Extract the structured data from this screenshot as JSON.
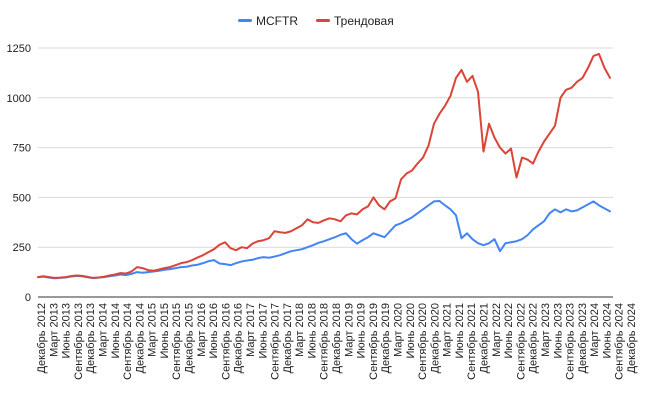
{
  "chart_data": {
    "type": "line",
    "title": "",
    "xlabel": "",
    "ylabel": "",
    "ylim": [
      0,
      1250
    ],
    "yticks": [
      0,
      250,
      500,
      750,
      1000,
      1250
    ],
    "ytick_labels": [
      "0",
      "250",
      "500",
      "750",
      "1000",
      "1250"
    ],
    "grid": true,
    "legend": "top-center",
    "x_tick_labels": [
      "Декабрь 2012",
      "Март 2013",
      "Июнь 2013",
      "Сентябрь 2013",
      "Декабрь 2013",
      "Март 2014",
      "Июнь 2014",
      "Сентябрь 2014",
      "Декабрь 2014",
      "Март 2015",
      "Июнь 2015",
      "Сентябрь 2015",
      "Декабрь 2015",
      "Март 2016",
      "Июнь 2016",
      "Сентябрь 2016",
      "Декабрь 2016",
      "Март 2017",
      "Июнь 2017",
      "Сентябрь 2017",
      "Декабрь 2017",
      "Март 2018",
      "Июнь 2018",
      "Сентябрь 2018",
      "Декабрь 2018",
      "Март 2019",
      "Июнь 2019",
      "Сентябрь 2019",
      "Декабрь 2019",
      "Март 2020",
      "Июнь 2020",
      "Сентябрь 2020",
      "Декабрь 2020",
      "Март 2021",
      "Июнь 2021",
      "Сентябрь 2021",
      "Декабрь 2021",
      "Март 2022",
      "Июнь 2022",
      "Сентябрь 2022",
      "Декабрь 2022",
      "Март 2023",
      "Июнь 2023",
      "Сентябрь 2023",
      "Декабрь 2023",
      "Март 2024",
      "Июнь 2024",
      "Сентябрь 2024",
      "Декабрь 2024"
    ],
    "series": [
      {
        "name": "MCFTR",
        "color": "#4285F4",
        "points": [
          [
            0,
            100
          ],
          [
            1,
            102
          ],
          [
            2,
            97
          ],
          [
            3,
            94
          ],
          [
            4,
            96
          ],
          [
            5,
            98
          ],
          [
            6,
            103
          ],
          [
            7,
            106
          ],
          [
            8,
            104
          ],
          [
            9,
            99
          ],
          [
            10,
            95
          ],
          [
            11,
            97
          ],
          [
            12,
            100
          ],
          [
            13,
            104
          ],
          [
            14,
            108
          ],
          [
            15,
            113
          ],
          [
            16,
            110
          ],
          [
            17,
            116
          ],
          [
            18,
            125
          ],
          [
            19,
            122
          ],
          [
            20,
            125
          ],
          [
            21,
            128
          ],
          [
            22,
            132
          ],
          [
            23,
            137
          ],
          [
            24,
            140
          ],
          [
            25,
            145
          ],
          [
            26,
            150
          ],
          [
            27,
            152
          ],
          [
            28,
            158
          ],
          [
            29,
            162
          ],
          [
            30,
            170
          ],
          [
            31,
            180
          ],
          [
            32,
            185
          ],
          [
            33,
            168
          ],
          [
            34,
            165
          ],
          [
            35,
            160
          ],
          [
            36,
            170
          ],
          [
            37,
            178
          ],
          [
            38,
            183
          ],
          [
            39,
            187
          ],
          [
            40,
            195
          ],
          [
            41,
            200
          ],
          [
            42,
            197
          ],
          [
            43,
            203
          ],
          [
            44,
            210
          ],
          [
            45,
            220
          ],
          [
            46,
            230
          ],
          [
            47,
            235
          ],
          [
            48,
            240
          ],
          [
            49,
            250
          ],
          [
            50,
            260
          ],
          [
            51,
            272
          ],
          [
            52,
            280
          ],
          [
            53,
            290
          ],
          [
            54,
            300
          ],
          [
            55,
            312
          ],
          [
            56,
            320
          ],
          [
            57,
            290
          ],
          [
            58,
            268
          ],
          [
            59,
            285
          ],
          [
            60,
            300
          ],
          [
            61,
            320
          ],
          [
            62,
            310
          ],
          [
            63,
            300
          ],
          [
            64,
            330
          ],
          [
            65,
            360
          ],
          [
            66,
            370
          ],
          [
            67,
            385
          ],
          [
            68,
            400
          ],
          [
            69,
            420
          ],
          [
            70,
            440
          ],
          [
            71,
            460
          ],
          [
            72,
            480
          ],
          [
            73,
            482
          ],
          [
            74,
            460
          ],
          [
            75,
            440
          ],
          [
            76,
            410
          ],
          [
            77,
            295
          ],
          [
            78,
            320
          ],
          [
            79,
            290
          ],
          [
            80,
            270
          ],
          [
            81,
            260
          ],
          [
            82,
            270
          ],
          [
            83,
            290
          ],
          [
            84,
            230
          ],
          [
            85,
            270
          ],
          [
            86,
            275
          ],
          [
            87,
            280
          ],
          [
            88,
            290
          ],
          [
            89,
            310
          ],
          [
            90,
            340
          ],
          [
            91,
            360
          ],
          [
            92,
            380
          ],
          [
            93,
            420
          ],
          [
            94,
            440
          ],
          [
            95,
            425
          ],
          [
            96,
            440
          ],
          [
            97,
            430
          ],
          [
            98,
            435
          ],
          [
            99,
            450
          ],
          [
            100,
            465
          ],
          [
            101,
            480
          ],
          [
            102,
            460
          ],
          [
            103,
            445
          ],
          [
            104,
            430
          ]
        ]
      },
      {
        "name": "Трендовая",
        "color": "#DB4437",
        "points": [
          [
            0,
            100
          ],
          [
            1,
            104
          ],
          [
            2,
            100
          ],
          [
            3,
            96
          ],
          [
            4,
            97
          ],
          [
            5,
            100
          ],
          [
            6,
            105
          ],
          [
            7,
            108
          ],
          [
            8,
            106
          ],
          [
            9,
            101
          ],
          [
            10,
            96
          ],
          [
            11,
            98
          ],
          [
            12,
            102
          ],
          [
            13,
            108
          ],
          [
            14,
            113
          ],
          [
            15,
            120
          ],
          [
            16,
            118
          ],
          [
            17,
            128
          ],
          [
            18,
            150
          ],
          [
            19,
            145
          ],
          [
            20,
            135
          ],
          [
            21,
            132
          ],
          [
            22,
            138
          ],
          [
            23,
            145
          ],
          [
            24,
            150
          ],
          [
            25,
            160
          ],
          [
            26,
            170
          ],
          [
            27,
            175
          ],
          [
            28,
            185
          ],
          [
            29,
            198
          ],
          [
            30,
            210
          ],
          [
            31,
            225
          ],
          [
            32,
            240
          ],
          [
            33,
            262
          ],
          [
            34,
            275
          ],
          [
            35,
            245
          ],
          [
            36,
            235
          ],
          [
            37,
            250
          ],
          [
            38,
            245
          ],
          [
            39,
            268
          ],
          [
            40,
            280
          ],
          [
            41,
            285
          ],
          [
            42,
            295
          ],
          [
            43,
            330
          ],
          [
            44,
            325
          ],
          [
            45,
            322
          ],
          [
            46,
            330
          ],
          [
            47,
            345
          ],
          [
            48,
            360
          ],
          [
            49,
            390
          ],
          [
            50,
            375
          ],
          [
            51,
            372
          ],
          [
            52,
            385
          ],
          [
            53,
            395
          ],
          [
            54,
            390
          ],
          [
            55,
            380
          ],
          [
            56,
            410
          ],
          [
            57,
            420
          ],
          [
            58,
            415
          ],
          [
            59,
            440
          ],
          [
            60,
            455
          ],
          [
            61,
            500
          ],
          [
            62,
            460
          ],
          [
            63,
            440
          ],
          [
            64,
            480
          ],
          [
            65,
            495
          ],
          [
            66,
            590
          ],
          [
            67,
            620
          ],
          [
            68,
            635
          ],
          [
            69,
            670
          ],
          [
            70,
            700
          ],
          [
            71,
            760
          ],
          [
            72,
            870
          ],
          [
            73,
            920
          ],
          [
            74,
            960
          ],
          [
            75,
            1010
          ],
          [
            76,
            1100
          ],
          [
            77,
            1140
          ],
          [
            78,
            1080
          ],
          [
            79,
            1110
          ],
          [
            80,
            1030
          ],
          [
            81,
            730
          ],
          [
            82,
            870
          ],
          [
            83,
            800
          ],
          [
            84,
            750
          ],
          [
            85,
            720
          ],
          [
            86,
            745
          ],
          [
            87,
            600
          ],
          [
            88,
            700
          ],
          [
            89,
            690
          ],
          [
            90,
            670
          ],
          [
            91,
            730
          ],
          [
            92,
            780
          ],
          [
            93,
            820
          ],
          [
            94,
            860
          ],
          [
            95,
            1000
          ],
          [
            96,
            1040
          ],
          [
            97,
            1050
          ],
          [
            98,
            1080
          ],
          [
            99,
            1100
          ],
          [
            100,
            1150
          ],
          [
            101,
            1210
          ],
          [
            102,
            1220
          ],
          [
            103,
            1150
          ],
          [
            104,
            1100
          ]
        ]
      }
    ]
  }
}
